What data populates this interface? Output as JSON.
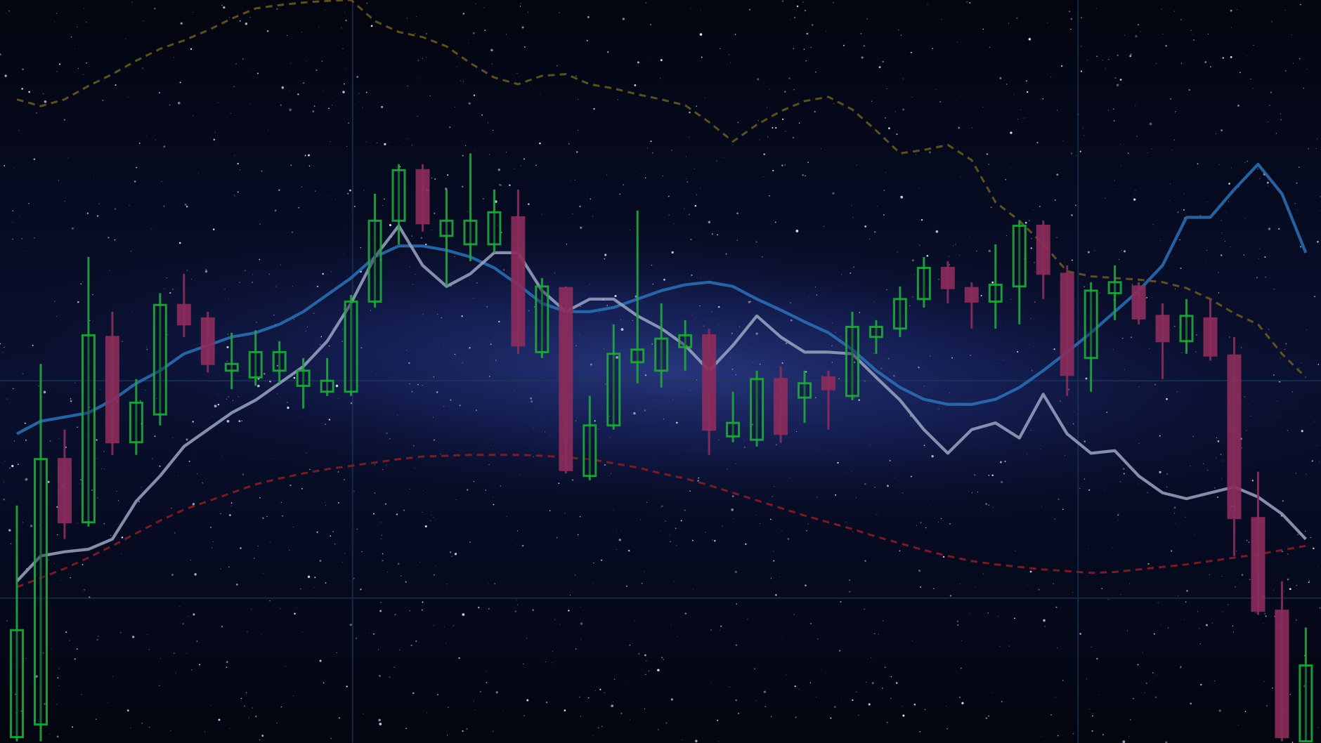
{
  "chart_data": {
    "type": "candlestick",
    "categories": [
      null,
      null,
      null,
      null,
      null,
      null,
      null,
      null,
      null,
      null,
      null,
      null,
      null,
      null,
      null,
      null,
      null,
      null,
      null,
      null,
      null,
      null,
      null,
      null,
      null,
      null,
      null,
      null,
      null,
      null,
      null,
      null,
      null,
      null,
      null,
      null,
      null,
      null,
      null,
      null,
      null,
      null,
      null,
      null,
      null,
      null,
      null,
      null,
      null,
      null,
      null,
      null,
      null,
      null,
      null
    ],
    "open": [
      7,
      22,
      337,
      262,
      482,
      357,
      390,
      520,
      504,
      442,
      434,
      442,
      424,
      417,
      417,
      524,
      620,
      680,
      602,
      592,
      592,
      624,
      464,
      540,
      317,
      377,
      452,
      442,
      470,
      484,
      364,
      360,
      432,
      410,
      434,
      412,
      482,
      492,
      527,
      564,
      540,
      524,
      542,
      614,
      557,
      457,
      534,
      542,
      507,
      477,
      504,
      460,
      267,
      157,
      2
    ],
    "high": [
      282,
      450,
      372,
      577,
      512,
      432,
      534,
      557,
      512,
      487,
      490,
      477,
      457,
      457,
      532,
      652,
      687,
      687,
      657,
      700,
      657,
      657,
      552,
      542,
      412,
      497,
      632,
      522,
      502,
      492,
      417,
      442,
      447,
      442,
      442,
      512,
      502,
      542,
      577,
      572,
      547,
      592,
      620,
      620,
      567,
      547,
      567,
      547,
      522,
      527,
      527,
      482,
      322,
      192,
      137
    ],
    "low": [
      2,
      2,
      242,
      257,
      342,
      342,
      377,
      482,
      440,
      420,
      424,
      427,
      397,
      412,
      412,
      517,
      592,
      607,
      542,
      572,
      582,
      462,
      457,
      320,
      312,
      372,
      427,
      422,
      442,
      342,
      357,
      352,
      357,
      380,
      372,
      407,
      462,
      482,
      517,
      522,
      492,
      492,
      497,
      527,
      412,
      417,
      502,
      497,
      432,
      462,
      454,
      222,
      152,
      2,
      2
    ],
    "close": [
      134,
      337,
      262,
      484,
      357,
      404,
      520,
      497,
      450,
      450,
      464,
      464,
      442,
      430,
      524,
      620,
      680,
      617,
      620,
      620,
      630,
      472,
      542,
      324,
      377,
      462,
      467,
      480,
      484,
      372,
      380,
      432,
      367,
      427,
      420,
      494,
      494,
      527,
      564,
      540,
      524,
      544,
      614,
      557,
      437,
      537,
      547,
      504,
      477,
      507,
      460,
      267,
      157,
      7,
      92
    ],
    "up_color": "#22a83e",
    "down_color": "#8c2d5c",
    "series": [
      {
        "color": "#2b72b8",
        "dashed": false,
        "values": [
          367,
          382,
          387,
          392,
          407,
          427,
          442,
          462,
          472,
          482,
          487,
          497,
          512,
          532,
          552,
          577,
          590,
          590,
          585,
          577,
          564,
          544,
          522,
          512,
          512,
          517,
          527,
          537,
          544,
          547,
          542,
          527,
          514,
          500,
          487,
          467,
          442,
          422,
          408,
          402,
          402,
          408,
          422,
          442,
          464,
          487,
          512,
          537,
          567,
          624,
          624,
          657,
          687,
          652,
          582
        ]
      },
      {
        "color": "#9aa6c2",
        "dashed": false,
        "values": [
          192,
          222,
          227,
          230,
          242,
          287,
          317,
          352,
          372,
          392,
          407,
          427,
          447,
          477,
          522,
          577,
          614,
          567,
          542,
          557,
          582,
          582,
          537,
          512,
          527,
          527,
          507,
          492,
          472,
          442,
          472,
          507,
          482,
          464,
          464,
          462,
          434,
          407,
          372,
          344,
          372,
          380,
          362,
          414,
          367,
          344,
          347,
          317,
          297,
          290,
          297,
          304,
          292,
          272,
          242
        ]
      },
      {
        "color": "#8c1f26",
        "dashed": true,
        "values": [
          185,
          196,
          207,
          220,
          234,
          249,
          264,
          277,
          287,
          297,
          307,
          314,
          320,
          325,
          329,
          333,
          337,
          340,
          341,
          342,
          342,
          342,
          341,
          339,
          337,
          332,
          327,
          320,
          314,
          306,
          297,
          288,
          279,
          270,
          262,
          254,
          245,
          237,
          229,
          222,
          216,
          212,
          209,
          206,
          204,
          202,
          203,
          206,
          209,
          212,
          216,
          220,
          224,
          229,
          234
        ]
      },
      {
        "color": "#6e5d1f",
        "dashed": true,
        "values": [
          764,
          756,
          764,
          780,
          794,
          810,
          824,
          834,
          846,
          860,
          872,
          876,
          879,
          881,
          882,
          857,
          844,
          838,
          827,
          807,
          790,
          782,
          792,
          794,
          782,
          777,
          770,
          764,
          757,
          737,
          714,
          734,
          750,
          762,
          767,
          752,
          727,
          700,
          704,
          710,
          692,
          642,
          620,
          592,
          560,
          554,
          552,
          550,
          547,
          540,
          527,
          510,
          497,
          462,
          434
        ]
      }
    ],
    "ylim": [
      0,
      882
    ]
  }
}
